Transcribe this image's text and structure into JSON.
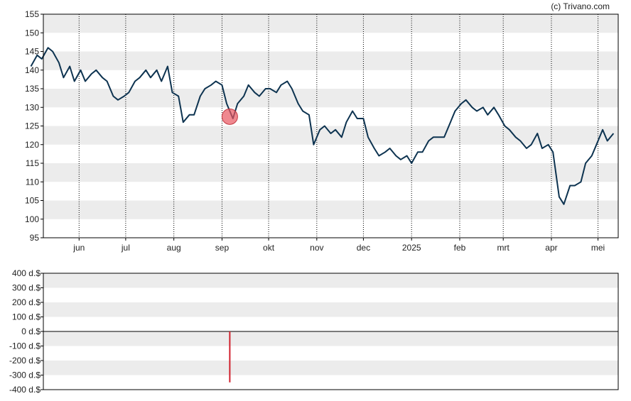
{
  "credit": "(c) Trivano.com",
  "colors": {
    "line": "#0d3350",
    "marker": "#e8555f",
    "bar": "#d0202c",
    "band": "#ececec",
    "frame": "#000000"
  },
  "chart_data": [
    {
      "type": "line",
      "series": [
        {
          "x": [
            "2024-05-01",
            "2024-05-05",
            "2024-05-08",
            "2024-05-12",
            "2024-05-15",
            "2024-05-19",
            "2024-05-22",
            "2024-05-26",
            "2024-05-29",
            "2024-06-02",
            "2024-06-05",
            "2024-06-09",
            "2024-06-12",
            "2024-06-16",
            "2024-06-19",
            "2024-06-23",
            "2024-06-26",
            "2024-06-30",
            "2024-07-03",
            "2024-07-07",
            "2024-07-10",
            "2024-07-14",
            "2024-07-17",
            "2024-07-21",
            "2024-07-24",
            "2024-07-28",
            "2024-07-31",
            "2024-08-04",
            "2024-08-07",
            "2024-08-11",
            "2024-08-14",
            "2024-08-18",
            "2024-08-21",
            "2024-08-25",
            "2024-08-28",
            "2024-09-01",
            "2024-09-04",
            "2024-09-08",
            "2024-09-11",
            "2024-09-15",
            "2024-09-18",
            "2024-09-22",
            "2024-09-25",
            "2024-09-29",
            "2024-10-02",
            "2024-10-06",
            "2024-10-09",
            "2024-10-13",
            "2024-10-16",
            "2024-10-20",
            "2024-10-23",
            "2024-10-27",
            "2024-10-30",
            "2024-11-03",
            "2024-11-06",
            "2024-11-10",
            "2024-11-13",
            "2024-11-17",
            "2024-11-20",
            "2024-11-24",
            "2024-11-27",
            "2024-12-01",
            "2024-12-04",
            "2024-12-08",
            "2024-12-11",
            "2024-12-15",
            "2024-12-18",
            "2024-12-22",
            "2024-12-25",
            "2024-12-29",
            "2025-01-01",
            "2025-01-05",
            "2025-01-08",
            "2025-01-12",
            "2025-01-15",
            "2025-01-19",
            "2025-01-22",
            "2025-01-26",
            "2025-01-29",
            "2025-02-02",
            "2025-02-05",
            "2025-02-09",
            "2025-02-12",
            "2025-02-16",
            "2025-02-19",
            "2025-02-23",
            "2025-02-26",
            "2025-03-02",
            "2025-03-05",
            "2025-03-09",
            "2025-03-12",
            "2025-03-16",
            "2025-03-19",
            "2025-03-23",
            "2025-03-26",
            "2025-03-30",
            "2025-04-02",
            "2025-04-06",
            "2025-04-09",
            "2025-04-13",
            "2025-04-16",
            "2025-04-20",
            "2025-04-23",
            "2025-04-27",
            "2025-04-30",
            "2025-05-04",
            "2025-05-07",
            "2025-05-11"
          ],
          "y": [
            141,
            144,
            143,
            146,
            145,
            142,
            138,
            141,
            137,
            140,
            137,
            139,
            140,
            138,
            137,
            133,
            132,
            133,
            134,
            137,
            138,
            140,
            138,
            140,
            137,
            141,
            134,
            133,
            126,
            128,
            128,
            133,
            135,
            136,
            137,
            136,
            131,
            127,
            131,
            133,
            136,
            134,
            133,
            135,
            135,
            134,
            136,
            137,
            135,
            131,
            129,
            128,
            120,
            124,
            125,
            123,
            124,
            122,
            126,
            129,
            127,
            127,
            122,
            119,
            117,
            118,
            119,
            117,
            116,
            117,
            115,
            118,
            118,
            121,
            122,
            122,
            122,
            126,
            129,
            131,
            132,
            130,
            129,
            130,
            128,
            130,
            128,
            125,
            124,
            122,
            121,
            119,
            120,
            123,
            119,
            120,
            118,
            106,
            104,
            109,
            109,
            110,
            115,
            117,
            120,
            124,
            121,
            123
          ]
        }
      ],
      "ylim": [
        95,
        155
      ],
      "yticks": [
        95,
        100,
        105,
        110,
        115,
        120,
        125,
        130,
        135,
        140,
        145,
        150,
        155
      ],
      "xlim": [
        "2024-05-09",
        "2025-05-14"
      ],
      "xticks": [
        {
          "date": "2024-06-01",
          "label": "jun"
        },
        {
          "date": "2024-07-01",
          "label": "jul"
        },
        {
          "date": "2024-08-01",
          "label": "aug"
        },
        {
          "date": "2024-09-01",
          "label": "sep"
        },
        {
          "date": "2024-10-01",
          "label": "okt"
        },
        {
          "date": "2024-11-01",
          "label": "nov"
        },
        {
          "date": "2024-12-01",
          "label": "dec"
        },
        {
          "date": "2025-01-01",
          "label": "2025"
        },
        {
          "date": "2025-02-01",
          "label": "feb"
        },
        {
          "date": "2025-03-01",
          "label": "mrt"
        },
        {
          "date": "2025-04-01",
          "label": "apr"
        },
        {
          "date": "2025-05-01",
          "label": "mei"
        }
      ],
      "grid": "horizontal bands, vertical dotted lines at month ticks",
      "marker": {
        "date": "2024-09-06",
        "y": 127.5
      }
    },
    {
      "type": "bar",
      "bars": [
        {
          "date": "2024-09-06",
          "value": -350
        }
      ],
      "ylim": [
        -400,
        400
      ],
      "yticks": [
        {
          "value": 400,
          "label": "400 d.$"
        },
        {
          "value": 300,
          "label": "300 d.$"
        },
        {
          "value": 200,
          "label": "200 d.$"
        },
        {
          "value": 100,
          "label": "100 d.$"
        },
        {
          "value": 0,
          "label": "0 d.$"
        },
        {
          "value": -100,
          "label": "-100 d.$"
        },
        {
          "value": -200,
          "label": "-200 d.$"
        },
        {
          "value": -300,
          "label": "-300 d.$"
        },
        {
          "value": -400,
          "label": "-400 d.$"
        }
      ]
    }
  ]
}
